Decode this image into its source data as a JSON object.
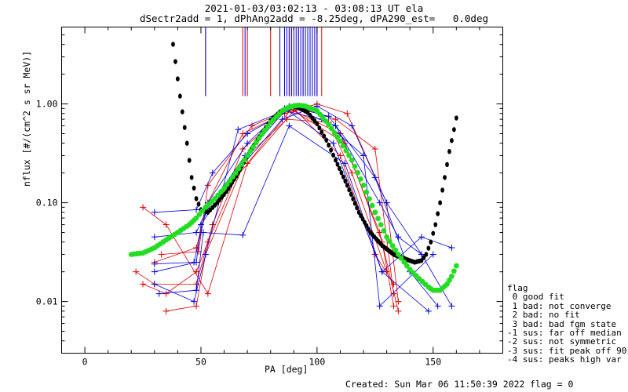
{
  "header": {
    "title_line1": "2021-01-03/03:02:13 - 03:08:13 UT ela",
    "title_line2": "dSectr2add = 1, dPhAng2add = -8.25deg, dPA290_est=   0.0deg"
  },
  "footer": {
    "created": "Created: Sun Mar 06 11:50:39 2022",
    "flag_status": "flag = 0"
  },
  "legend": {
    "title": "flag",
    "entries": [
      " 0 good fit",
      " 1 bad: not converge",
      " 2 bad: no fit",
      " 3 bad: bad fgm state",
      "-1 sus: far off median",
      "-2 sus: not symmetric",
      "-3 sus: fit peak off 90",
      "-4 sus: peaks high var"
    ]
  },
  "colors": {
    "red_series": "#dd0000",
    "blue_series": "#0000dd",
    "fit_curve": "#000000",
    "model_curve": "#22dd22"
  },
  "chart_data": {
    "type": "line",
    "xlabel": "PA [deg]",
    "ylabel": "nflux [#/(cm^2 s sr MeV)]",
    "xlim": [
      -10,
      180
    ],
    "ylim": [
      0.003,
      6
    ],
    "yscale": "log",
    "xticks": [
      0,
      50,
      100,
      150
    ],
    "yticks": [
      0.01,
      0.1,
      1.0
    ],
    "ytick_labels": [
      "0.01",
      "0.10",
      "1.00"
    ],
    "grid": false,
    "legend_position": "right",
    "vertical_markers": {
      "red_x": [
        52,
        68,
        70,
        80,
        86,
        88,
        89,
        92,
        94,
        97,
        100,
        102
      ],
      "blue_x": [
        52,
        69,
        84,
        86,
        87,
        88,
        89,
        90,
        91,
        92,
        93,
        94,
        95,
        96,
        97,
        98,
        99,
        100
      ]
    },
    "series": [
      {
        "name": "flag 1",
        "color": "red",
        "x": [
          25,
          35,
          53,
          70,
          90,
          108,
          125,
          133
        ],
        "y": [
          0.09,
          0.06,
          0.012,
          0.25,
          0.95,
          0.7,
          0.35,
          0.012
        ]
      },
      {
        "name": "flag 1",
        "color": "red",
        "x": [
          22,
          30,
          48,
          55,
          68,
          88,
          110,
          127,
          135
        ],
        "y": [
          0.02,
          0.015,
          0.015,
          0.06,
          0.35,
          0.9,
          0.5,
          0.05,
          0.008
        ]
      },
      {
        "name": "flag 1",
        "color": "red",
        "x": [
          25,
          35,
          48,
          53,
          65,
          90,
          112,
          128,
          133
        ],
        "y": [
          0.015,
          0.012,
          0.02,
          0.04,
          0.18,
          0.85,
          0.4,
          0.04,
          0.009
        ]
      },
      {
        "name": "flag 1",
        "color": "red",
        "x": [
          30,
          48,
          53,
          68,
          86,
          100,
          113,
          130,
          135
        ],
        "y": [
          0.025,
          0.035,
          0.1,
          0.5,
          0.8,
          1.0,
          0.8,
          0.1,
          0.01
        ]
      },
      {
        "name": "flag 1",
        "color": "red",
        "x": [
          35,
          48,
          52,
          70,
          87,
          105,
          115,
          130
        ],
        "y": [
          0.008,
          0.009,
          0.03,
          0.3,
          0.7,
          0.65,
          0.2,
          0.02
        ]
      },
      {
        "name": "flag 1",
        "color": "red",
        "x": [
          33,
          49,
          53,
          72,
          90,
          110,
          125,
          133
        ],
        "y": [
          0.03,
          0.032,
          0.15,
          0.6,
          0.9,
          0.3,
          0.03,
          0.015
        ]
      },
      {
        "name": "flag 0",
        "color": "blue",
        "x": [
          30,
          48,
          55,
          70,
          90,
          105,
          125,
          140,
          152
        ],
        "y": [
          0.08,
          0.085,
          0.2,
          0.5,
          0.92,
          0.75,
          0.18,
          0.02,
          0.009
        ]
      },
      {
        "name": "flag 0",
        "color": "blue",
        "x": [
          30,
          48,
          52,
          69,
          88,
          108,
          127,
          135,
          145
        ],
        "y": [
          0.045,
          0.05,
          0.08,
          0.3,
          0.95,
          0.6,
          0.1,
          0.045,
          0.03
        ]
      },
      {
        "name": "flag 0",
        "color": "blue",
        "x": [
          30,
          47,
          52,
          66,
          86,
          102,
          120,
          127,
          150
        ],
        "y": [
          0.015,
          0.01,
          0.03,
          0.55,
          0.85,
          0.7,
          0.3,
          0.009,
          0.03
        ]
      },
      {
        "name": "flag 0",
        "color": "blue",
        "x": [
          30,
          48,
          50,
          65,
          85,
          100,
          115,
          130,
          145,
          158
        ],
        "y": [
          0.02,
          0.025,
          0.06,
          0.2,
          0.7,
          0.95,
          0.6,
          0.1,
          0.03,
          0.009
        ]
      },
      {
        "name": "flag 0",
        "color": "blue",
        "x": [
          32,
          48,
          51,
          68,
          88,
          112,
          128,
          148
        ],
        "y": [
          0.012,
          0.013,
          0.05,
          0.047,
          0.6,
          0.25,
          0.02,
          0.008
        ]
      },
      {
        "name": "flag 0",
        "color": "blue",
        "x": [
          30,
          47,
          53,
          70,
          86,
          107,
          128,
          145,
          158
        ],
        "y": [
          0.024,
          0.025,
          0.1,
          0.4,
          0.9,
          0.4,
          0.02,
          0.045,
          0.035
        ]
      },
      {
        "name": "fit",
        "color": "black",
        "x": [
          37,
          41,
          44,
          46,
          48,
          50,
          53,
          57,
          61,
          66,
          71,
          76,
          80,
          84,
          88,
          92,
          96,
          100,
          104,
          108,
          113,
          118,
          123,
          128,
          133,
          138,
          142,
          145,
          147,
          149,
          151,
          153,
          155,
          157,
          159,
          160
        ],
        "y": [
          6.0,
          1.2,
          0.4,
          0.18,
          0.11,
          0.085,
          0.08,
          0.1,
          0.13,
          0.2,
          0.33,
          0.5,
          0.68,
          0.83,
          0.93,
          0.93,
          0.82,
          0.63,
          0.43,
          0.27,
          0.15,
          0.08,
          0.05,
          0.037,
          0.03,
          0.027,
          0.025,
          0.026,
          0.03,
          0.04,
          0.06,
          0.1,
          0.18,
          0.33,
          0.55,
          0.72
        ]
      },
      {
        "name": "model",
        "color": "green",
        "x": [
          20,
          25,
          30,
          35,
          40,
          45,
          48,
          52,
          56,
          60,
          65,
          70,
          75,
          80,
          85,
          88,
          90,
          92,
          95,
          100,
          105,
          110,
          115,
          120,
          125,
          130,
          135,
          140,
          144,
          148,
          150,
          153,
          156,
          158,
          160
        ],
        "y": [
          0.03,
          0.031,
          0.035,
          0.042,
          0.05,
          0.06,
          0.07,
          0.09,
          0.11,
          0.14,
          0.2,
          0.3,
          0.45,
          0.65,
          0.85,
          0.93,
          0.95,
          0.97,
          0.95,
          0.85,
          0.62,
          0.42,
          0.27,
          0.15,
          0.08,
          0.045,
          0.03,
          0.021,
          0.017,
          0.014,
          0.013,
          0.013,
          0.015,
          0.018,
          0.023
        ]
      }
    ]
  }
}
